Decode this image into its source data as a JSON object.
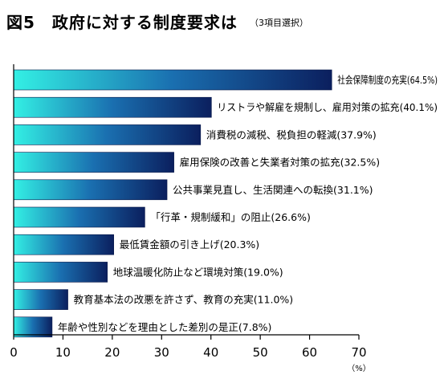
{
  "header": {
    "title": "図5　政府に対する制度要求は",
    "note": "（3項目選択）"
  },
  "chart_data": {
    "type": "bar",
    "orientation": "horizontal",
    "categories": [
      "社会保障制度の充実(64.5%)",
      "リストラや解雇を規制し、雇用対策の拡充(40.1%)",
      "消費税の減税、税負担の軽減(37.9%)",
      "雇用保険の改善と失業者対策の拡充(32.5%)",
      "公共事業見直し、生活関連への転換(31.1%)",
      "「行革・規制緩和」の阻止(26.6%)",
      "最低賃金額の引き上げ(20.3%)",
      "地球温暖化防止など環境対策(19.0%)",
      "教育基本法の改悪を許さず、教育の充実(11.0%)",
      "年齢や性別などを理由とした差別の是正(7.8%)"
    ],
    "values": [
      64.5,
      40.1,
      37.9,
      32.5,
      31.1,
      26.6,
      20.3,
      19.0,
      11.0,
      7.8
    ],
    "xlim": [
      0,
      70
    ],
    "xticks": [
      "0",
      "10",
      "20",
      "30",
      "40",
      "50",
      "60",
      "70"
    ],
    "xunit": "（%）",
    "grid": false,
    "colors": {
      "bar_start": "#33f0e4",
      "bar_mid": "#1a6fb0",
      "bar_end": "#0b1f5e",
      "axis": "#000000"
    }
  }
}
